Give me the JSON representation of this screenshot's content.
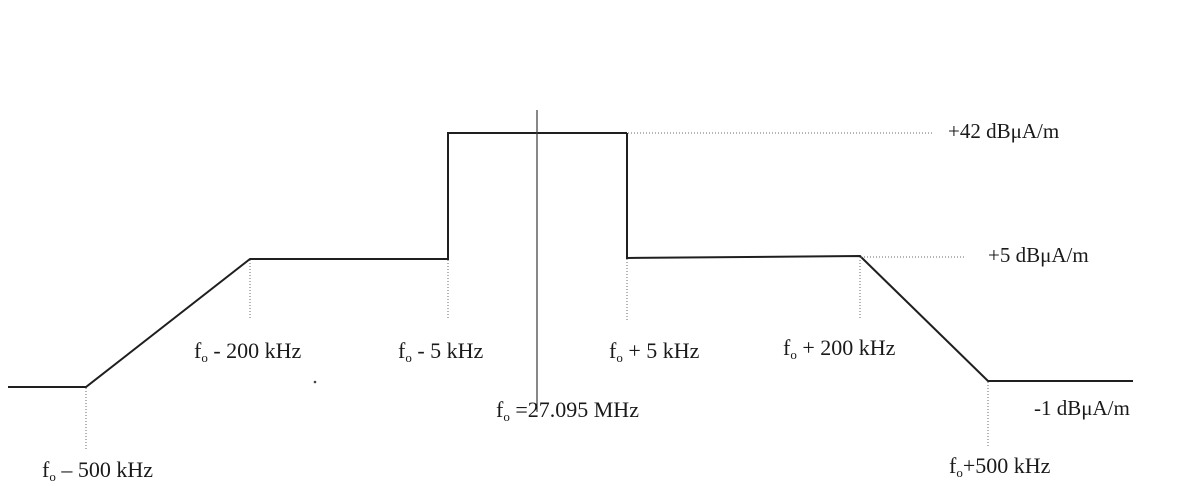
{
  "diagram": {
    "levels": {
      "high": "+42 dBμA/m",
      "mid": "+5 dBμA/m",
      "low": "-1 dBμA/m"
    },
    "freq_labels": {
      "fo_minus_500": "– 500 kHz",
      "fo_minus_200": "- 200 kHz",
      "fo_minus_5": "- 5 kHz",
      "fo_center": "27.095 MHz",
      "fo_plus_5": "+ 5 kHz",
      "fo_plus_200": "+ 200 kHz",
      "fo_plus_500": "+500 kHz"
    },
    "f_letter": "f",
    "f_subscript": "o",
    "equals_sign": "="
  },
  "colors": {
    "line": "#1f1f1f",
    "dotted": "#6a6a6a",
    "background": "#ffffff"
  }
}
